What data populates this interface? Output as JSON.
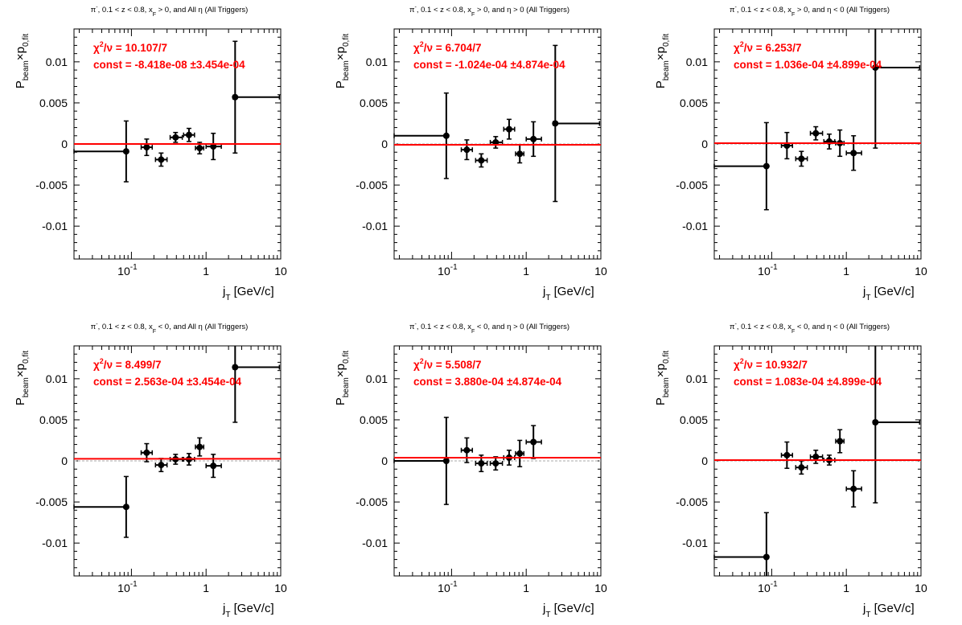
{
  "colors": {
    "axis": "#000000",
    "data": "#000000",
    "fit": "#ff0000",
    "zero_line": "#aaaaaa"
  },
  "chart_data": [
    {
      "type": "scatter",
      "title": "π⁻, 0.1 < z < 0.8, x_F > 0, and All η (All Triggers)",
      "title_parts": {
        "a": "π",
        "sup": "-",
        "b": ", 0.1 < z < 0.8, x",
        "sub": "F",
        "c": " > 0, and All   η  (All Triggers)"
      },
      "xlabel": {
        "main": "j",
        "sub": "T",
        "rest": " [GeV/c]"
      },
      "ylabel": {
        "main": "P",
        "sub1": "beam",
        "mid": "×p",
        "sub2": "0,fit"
      },
      "xscale": "log",
      "xlim": [
        0.017,
        10
      ],
      "ylim": [
        -0.014,
        0.014
      ],
      "yticks": [
        "0.01",
        "0.005",
        "0",
        "-0.005",
        "-0.01"
      ],
      "ytick_values": [
        0.01,
        0.005,
        0,
        -0.005,
        -0.01
      ],
      "xticks": [
        {
          "v": 0.1,
          "base": "10",
          "exp": "-1"
        },
        {
          "v": 1,
          "base": "1"
        },
        {
          "v": 10,
          "base": "10"
        }
      ],
      "fit": {
        "chi2_label": "χ²/ν = 10.107/7",
        "chi2_value": "10.107/7",
        "const_label": "const = -8.418e-08  ±3.454e-04",
        "value": 0.0
      },
      "points": [
        {
          "x": 0.085,
          "y": -0.0009,
          "xlo": 0.017,
          "xhi": 0.085,
          "ey": 0.0037
        },
        {
          "x": 0.16,
          "y": -0.0004,
          "xlo": 0.135,
          "xhi": 0.19,
          "ey": 0.001
        },
        {
          "x": 0.25,
          "y": -0.0019,
          "xlo": 0.21,
          "xhi": 0.3,
          "ey": 0.0008
        },
        {
          "x": 0.39,
          "y": 0.0008,
          "xlo": 0.33,
          "xhi": 0.48,
          "ey": 0.0006
        },
        {
          "x": 0.59,
          "y": 0.0011,
          "xlo": 0.5,
          "xhi": 0.7,
          "ey": 0.0008
        },
        {
          "x": 0.82,
          "y": -0.0005,
          "xlo": 0.72,
          "xhi": 0.93,
          "ey": 0.0007
        },
        {
          "x": 1.25,
          "y": -0.0003,
          "xlo": 1.0,
          "xhi": 1.6,
          "ey": 0.0016
        },
        {
          "x": 2.45,
          "y": 0.0057,
          "xlo": 2.3,
          "xhi": 9.6,
          "ey": 0.0068
        }
      ]
    },
    {
      "type": "scatter",
      "title": "π⁻, 0.1 < z < 0.8, x_F > 0, and η > 0 (All Triggers)",
      "title_parts": {
        "a": "π",
        "sup": "-",
        "b": ", 0.1 < z < 0.8, x",
        "sub": "F",
        "c": " > 0, and   η > 0 (All Triggers)"
      },
      "xlabel": {
        "main": "j",
        "sub": "T",
        "rest": " [GeV/c]"
      },
      "ylabel": {
        "main": "P",
        "sub1": "beam",
        "mid": "×p",
        "sub2": "0,fit"
      },
      "xscale": "log",
      "xlim": [
        0.017,
        10
      ],
      "ylim": [
        -0.014,
        0.014
      ],
      "yticks": [
        "0.01",
        "0.005",
        "0",
        "-0.005",
        "-0.01"
      ],
      "ytick_values": [
        0.01,
        0.005,
        0,
        -0.005,
        -0.01
      ],
      "xticks": [
        {
          "v": 0.1,
          "base": "10",
          "exp": "-1"
        },
        {
          "v": 1,
          "base": "1"
        },
        {
          "v": 10,
          "base": "10"
        }
      ],
      "fit": {
        "chi2_label": "χ²/ν = 6.704/7",
        "chi2_value": "6.704/7",
        "const_label": "const = -1.024e-04  ±4.874e-04",
        "value": -0.0001
      },
      "points": [
        {
          "x": 0.085,
          "y": 0.001,
          "xlo": 0.017,
          "xhi": 0.085,
          "ey": 0.0052
        },
        {
          "x": 0.16,
          "y": -0.0007,
          "xlo": 0.135,
          "xhi": 0.19,
          "ey": 0.0012
        },
        {
          "x": 0.25,
          "y": -0.002,
          "xlo": 0.21,
          "xhi": 0.3,
          "ey": 0.0008
        },
        {
          "x": 0.39,
          "y": 0.0002,
          "xlo": 0.33,
          "xhi": 0.48,
          "ey": 0.0007
        },
        {
          "x": 0.59,
          "y": 0.0018,
          "xlo": 0.5,
          "xhi": 0.7,
          "ey": 0.0012
        },
        {
          "x": 0.82,
          "y": -0.0012,
          "xlo": 0.72,
          "xhi": 0.93,
          "ey": 0.0011
        },
        {
          "x": 1.25,
          "y": 0.0006,
          "xlo": 1.0,
          "xhi": 1.6,
          "ey": 0.0021
        },
        {
          "x": 2.45,
          "y": 0.0025,
          "xlo": 2.3,
          "xhi": 9.6,
          "ey": 0.0095
        }
      ]
    },
    {
      "type": "scatter",
      "title": "π⁻, 0.1 < z < 0.8, x_F > 0, and η < 0 (All Triggers)",
      "title_parts": {
        "a": "π",
        "sup": "-",
        "b": ", 0.1 < z < 0.8, x",
        "sub": "F",
        "c": " > 0, and   η < 0 (All Triggers)"
      },
      "xlabel": {
        "main": "j",
        "sub": "T",
        "rest": " [GeV/c]"
      },
      "ylabel": {
        "main": "P",
        "sub1": "beam",
        "mid": "×p",
        "sub2": "0,fit"
      },
      "xscale": "log",
      "xlim": [
        0.017,
        10
      ],
      "ylim": [
        -0.014,
        0.014
      ],
      "yticks": [
        "0.01",
        "0.005",
        "0",
        "-0.005",
        "-0.01"
      ],
      "ytick_values": [
        0.01,
        0.005,
        0,
        -0.005,
        -0.01
      ],
      "xticks": [
        {
          "v": 0.1,
          "base": "10",
          "exp": "-1"
        },
        {
          "v": 1,
          "base": "1"
        },
        {
          "v": 10,
          "base": "10"
        }
      ],
      "fit": {
        "chi2_label": "χ²/ν = 6.253/7",
        "chi2_value": "6.253/7",
        "const_label": "const = 1.036e-04  ±4.899e-04",
        "value": 0.0001
      },
      "points": [
        {
          "x": 0.085,
          "y": -0.0027,
          "xlo": 0.017,
          "xhi": 0.085,
          "ey": 0.0053
        },
        {
          "x": 0.16,
          "y": -0.0002,
          "xlo": 0.135,
          "xhi": 0.19,
          "ey": 0.0016
        },
        {
          "x": 0.25,
          "y": -0.0018,
          "xlo": 0.21,
          "xhi": 0.3,
          "ey": 0.0009
        },
        {
          "x": 0.39,
          "y": 0.0013,
          "xlo": 0.33,
          "xhi": 0.48,
          "ey": 0.0008
        },
        {
          "x": 0.59,
          "y": 0.0003,
          "xlo": 0.5,
          "xhi": 0.7,
          "ey": 0.0009
        },
        {
          "x": 0.82,
          "y": 0.0001,
          "xlo": 0.72,
          "xhi": 0.93,
          "ey": 0.0016
        },
        {
          "x": 1.25,
          "y": -0.0011,
          "xlo": 1.0,
          "xhi": 1.6,
          "ey": 0.0021
        },
        {
          "x": 2.45,
          "y": 0.0093,
          "xlo": 2.3,
          "xhi": 9.6,
          "ey": 0.0098
        }
      ]
    },
    {
      "type": "scatter",
      "title": "π⁻, 0.1 < z < 0.8, x_F < 0, and All η (All Triggers)",
      "title_parts": {
        "a": "π",
        "sup": "-",
        "b": ", 0.1 < z < 0.8, x",
        "sub": "F",
        "c": " < 0, and All   η  (All Triggers)"
      },
      "xlabel": {
        "main": "j",
        "sub": "T",
        "rest": " [GeV/c]"
      },
      "ylabel": {
        "main": "P",
        "sub1": "beam",
        "mid": "×p",
        "sub2": "0,fit"
      },
      "xscale": "log",
      "xlim": [
        0.017,
        10
      ],
      "ylim": [
        -0.014,
        0.014
      ],
      "yticks": [
        "0.01",
        "0.005",
        "0",
        "-0.005",
        "-0.01"
      ],
      "ytick_values": [
        0.01,
        0.005,
        0,
        -0.005,
        -0.01
      ],
      "xticks": [
        {
          "v": 0.1,
          "base": "10",
          "exp": "-1"
        },
        {
          "v": 1,
          "base": "1"
        },
        {
          "v": 10,
          "base": "10"
        }
      ],
      "fit": {
        "chi2_label": "χ²/ν = 8.499/7",
        "chi2_value": "8.499/7",
        "const_label": "const = 2.563e-04  ±3.454e-04",
        "value": 0.00026
      },
      "points": [
        {
          "x": 0.085,
          "y": -0.0056,
          "xlo": 0.017,
          "xhi": 0.085,
          "ey": 0.0037
        },
        {
          "x": 0.16,
          "y": 0.001,
          "xlo": 0.135,
          "xhi": 0.19,
          "ey": 0.0011
        },
        {
          "x": 0.25,
          "y": -0.0005,
          "xlo": 0.21,
          "xhi": 0.3,
          "ey": 0.0008
        },
        {
          "x": 0.39,
          "y": 0.0002,
          "xlo": 0.33,
          "xhi": 0.48,
          "ey": 0.0006
        },
        {
          "x": 0.59,
          "y": 0.0002,
          "xlo": 0.5,
          "xhi": 0.7,
          "ey": 0.0007
        },
        {
          "x": 0.82,
          "y": 0.0017,
          "xlo": 0.72,
          "xhi": 0.93,
          "ey": 0.0011
        },
        {
          "x": 1.25,
          "y": -0.0006,
          "xlo": 1.0,
          "xhi": 1.6,
          "ey": 0.0014
        },
        {
          "x": 2.45,
          "y": 0.0114,
          "xlo": 2.3,
          "xhi": 9.6,
          "ey": 0.0067
        }
      ]
    },
    {
      "type": "scatter",
      "title": "π⁻, 0.1 < z < 0.8, x_F < 0, and η > 0 (All Triggers)",
      "title_parts": {
        "a": "π",
        "sup": "-",
        "b": ", 0.1 < z < 0.8, x",
        "sub": "F",
        "c": " < 0, and   η > 0 (All Triggers)"
      },
      "xlabel": {
        "main": "j",
        "sub": "T",
        "rest": " [GeV/c]"
      },
      "ylabel": {
        "main": "P",
        "sub1": "beam",
        "mid": "×p",
        "sub2": "0,fit"
      },
      "xscale": "log",
      "xlim": [
        0.017,
        10
      ],
      "ylim": [
        -0.014,
        0.014
      ],
      "yticks": [
        "0.01",
        "0.005",
        "0",
        "-0.005",
        "-0.01"
      ],
      "ytick_values": [
        0.01,
        0.005,
        0,
        -0.005,
        -0.01
      ],
      "xticks": [
        {
          "v": 0.1,
          "base": "10",
          "exp": "-1"
        },
        {
          "v": 1,
          "base": "1"
        },
        {
          "v": 10,
          "base": "10"
        }
      ],
      "fit": {
        "chi2_label": "χ²/ν = 5.508/7",
        "chi2_value": "5.508/7",
        "const_label": "const = 3.880e-04  ±4.874e-04",
        "value": 0.00039
      },
      "points": [
        {
          "x": 0.085,
          "y": 0.0,
          "xlo": 0.017,
          "xhi": 0.085,
          "ey": 0.0053
        },
        {
          "x": 0.16,
          "y": 0.0013,
          "xlo": 0.135,
          "xhi": 0.19,
          "ey": 0.0015
        },
        {
          "x": 0.25,
          "y": -0.0003,
          "xlo": 0.21,
          "xhi": 0.3,
          "ey": 0.001
        },
        {
          "x": 0.39,
          "y": -0.0003,
          "xlo": 0.33,
          "xhi": 0.48,
          "ey": 0.0008
        },
        {
          "x": 0.59,
          "y": 0.0004,
          "xlo": 0.5,
          "xhi": 0.7,
          "ey": 0.0009
        },
        {
          "x": 0.82,
          "y": 0.0009,
          "xlo": 0.72,
          "xhi": 0.93,
          "ey": 0.0016
        },
        {
          "x": 1.25,
          "y": 0.0023,
          "xlo": 1.0,
          "xhi": 1.6,
          "ey": 0.002
        }
      ]
    },
    {
      "type": "scatter",
      "title": "π⁻, 0.1 < z < 0.8, x_F < 0, and η < 0 (All Triggers)",
      "title_parts": {
        "a": "π",
        "sup": "-",
        "b": ", 0.1 < z < 0.8, x",
        "sub": "F",
        "c": " < 0, and   η < 0 (All Triggers)"
      },
      "xlabel": {
        "main": "j",
        "sub": "T",
        "rest": " [GeV/c]"
      },
      "ylabel": {
        "main": "P",
        "sub1": "beam",
        "mid": "×p",
        "sub2": "0,fit"
      },
      "xscale": "log",
      "xlim": [
        0.017,
        10
      ],
      "ylim": [
        -0.014,
        0.014
      ],
      "yticks": [
        "0.01",
        "0.005",
        "0",
        "-0.005",
        "-0.01"
      ],
      "ytick_values": [
        0.01,
        0.005,
        0,
        -0.005,
        -0.01
      ],
      "xticks": [
        {
          "v": 0.1,
          "base": "10",
          "exp": "-1"
        },
        {
          "v": 1,
          "base": "1"
        },
        {
          "v": 10,
          "base": "10"
        }
      ],
      "fit": {
        "chi2_label": "χ²/ν = 10.932/7",
        "chi2_value": "10.932/7",
        "const_label": "const = 1.083e-04  ±4.899e-04",
        "value": 0.0001
      },
      "points": [
        {
          "x": 0.085,
          "y": -0.0117,
          "xlo": 0.017,
          "xhi": 0.085,
          "ey": 0.0054
        },
        {
          "x": 0.16,
          "y": 0.0007,
          "xlo": 0.135,
          "xhi": 0.19,
          "ey": 0.0016
        },
        {
          "x": 0.25,
          "y": -0.0008,
          "xlo": 0.21,
          "xhi": 0.3,
          "ey": 0.0008
        },
        {
          "x": 0.39,
          "y": 0.0005,
          "xlo": 0.33,
          "xhi": 0.48,
          "ey": 0.0008
        },
        {
          "x": 0.59,
          "y": 0.0001,
          "xlo": 0.5,
          "xhi": 0.7,
          "ey": 0.0006
        },
        {
          "x": 0.82,
          "y": 0.0024,
          "xlo": 0.72,
          "xhi": 0.93,
          "ey": 0.0014
        },
        {
          "x": 1.25,
          "y": -0.0034,
          "xlo": 1.0,
          "xhi": 1.6,
          "ey": 0.0022
        },
        {
          "x": 2.45,
          "y": 0.0047,
          "xlo": 2.3,
          "xhi": 9.6,
          "ey": 0.0098
        }
      ]
    }
  ]
}
